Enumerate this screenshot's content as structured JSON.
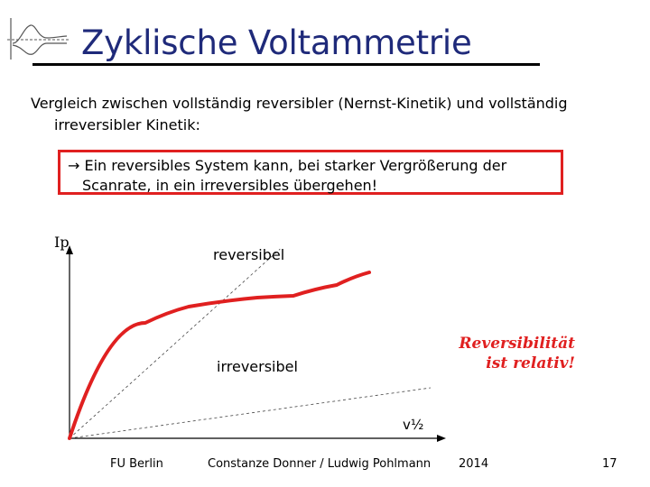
{
  "title": "Zyklische Voltammetrie",
  "intro": {
    "line1": "Vergleich zwischen vollständig reversibler (Nernst-Kinetik) und vollständig",
    "line2": "irreversibler Kinetik:"
  },
  "callout": {
    "line1": "→ Ein reversibles System kann, bei starker Vergrößerung der",
    "line2": "Scanrate, in ein irreversibles übergehen!"
  },
  "note": {
    "line1": "Reversibilität",
    "line2": "ist relativ!"
  },
  "colors": {
    "title": "#1f2a7a",
    "accent": "#e02020"
  },
  "chart_data": {
    "type": "line",
    "ylabel": "Ip",
    "xlabel": "v½",
    "annotations": [
      "reversibel",
      "irreversibel"
    ],
    "series": [
      {
        "values": [
          [
            0.0,
            0.0
          ],
          [
            0.21,
            0.64
          ],
          [
            0.33,
            0.73
          ],
          [
            0.52,
            0.78
          ],
          [
            0.62,
            0.79
          ],
          [
            0.74,
            0.85
          ],
          [
            0.83,
            0.92
          ]
        ]
      }
    ],
    "reference_lines": [
      {
        "label": "reversibel",
        "slope": 1.8
      },
      {
        "label": "irreversibel",
        "slope": 0.28
      }
    ],
    "xlim": [
      0,
      1
    ],
    "ylim": [
      0,
      1
    ]
  },
  "footer": {
    "left": "FU Berlin",
    "center": "Constanze Donner / Ludwig Pohlmann",
    "year": "2014",
    "page": "17"
  }
}
